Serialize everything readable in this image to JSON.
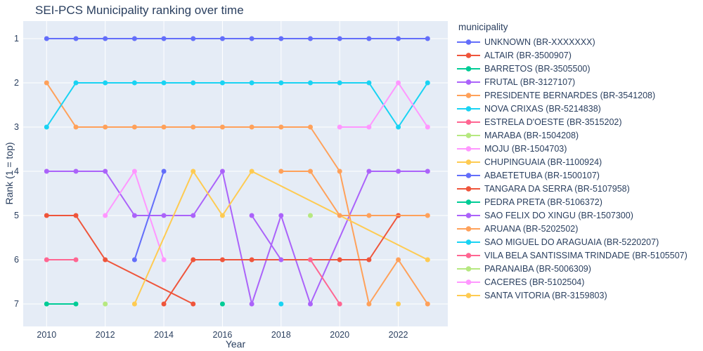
{
  "text_color": "#2a3f5f",
  "chart_data": {
    "type": "line",
    "title": "SEI-PCS Municipality ranking over time",
    "xlabel": "Year",
    "ylabel": "Rank (1 = top)",
    "legend_title": "municipality",
    "legend_position": "right",
    "plot_bg": "#E5ECF6",
    "grid": true,
    "grid_color": "#ffffff",
    "x_ticks": [
      2010,
      2012,
      2014,
      2016,
      2018,
      2020,
      2022
    ],
    "y_ticks": [
      1,
      2,
      3,
      4,
      5,
      6,
      7
    ],
    "x_range": [
      2009.2,
      2023.7
    ],
    "y_range": [
      7.5,
      0.6
    ],
    "y_axis_note": "y axis inverted: rank 1 plotted at top",
    "series": [
      {
        "name": "UNKNOWN (BR-XXXXXXX)",
        "color": "#636EFA",
        "points": [
          [
            2010,
            1
          ],
          [
            2011,
            1
          ],
          [
            2012,
            1
          ],
          [
            2013,
            1
          ],
          [
            2014,
            1
          ],
          [
            2015,
            1
          ],
          [
            2016,
            1
          ],
          [
            2017,
            1
          ],
          [
            2018,
            1
          ],
          [
            2019,
            1
          ],
          [
            2020,
            1
          ],
          [
            2021,
            1
          ],
          [
            2022,
            1
          ],
          [
            2023,
            1
          ]
        ]
      },
      {
        "name": "ALTAIR (BR-3500907)",
        "color": "#EF553B",
        "points": [
          [
            2010,
            5
          ],
          [
            2011,
            5
          ],
          [
            2012,
            6
          ],
          [
            2015,
            7
          ]
        ]
      },
      {
        "name": "BARRETOS (BR-3505500)",
        "color": "#00CC96",
        "points": [
          [
            2010,
            7
          ],
          [
            2011,
            7
          ]
        ]
      },
      {
        "name": "FRUTAL (BR-3127107)",
        "color": "#AB63FA",
        "points": [
          [
            2010,
            4
          ],
          [
            2011,
            4
          ],
          [
            2012,
            4
          ],
          [
            2013,
            5
          ],
          [
            2014,
            5
          ],
          [
            2015,
            5
          ],
          [
            2016,
            4
          ],
          [
            2017,
            7
          ],
          [
            2018,
            5
          ],
          [
            2019,
            7
          ],
          [
            2021,
            4
          ],
          [
            2022,
            4
          ],
          [
            2023,
            4
          ]
        ]
      },
      {
        "name": "PRESIDENTE BERNARDES (BR-3541208)",
        "color": "#FFA15A",
        "points": [
          [
            2010,
            2
          ],
          [
            2011,
            3
          ],
          [
            2012,
            3
          ],
          [
            2013,
            3
          ],
          [
            2014,
            3
          ],
          [
            2015,
            3
          ],
          [
            2016,
            3
          ],
          [
            2017,
            3
          ],
          [
            2018,
            3
          ],
          [
            2019,
            3
          ],
          [
            2020,
            4
          ],
          [
            2021,
            7
          ],
          [
            2022,
            6
          ],
          [
            2023,
            7
          ]
        ]
      },
      {
        "name": "NOVA CRIXAS (BR-5214838)",
        "color": "#19D3F3",
        "points": [
          [
            2010,
            3
          ],
          [
            2011,
            2
          ],
          [
            2012,
            2
          ],
          [
            2013,
            2
          ],
          [
            2014,
            2
          ],
          [
            2015,
            2
          ],
          [
            2016,
            2
          ],
          [
            2017,
            2
          ],
          [
            2018,
            2
          ],
          [
            2019,
            2
          ],
          [
            2020,
            2
          ],
          [
            2021,
            2
          ],
          [
            2022,
            3
          ],
          [
            2023,
            2
          ]
        ]
      },
      {
        "name": "ESTRELA D'OESTE (BR-3515202)",
        "color": "#FF6692",
        "points": [
          [
            2010,
            6
          ],
          [
            2011,
            6
          ]
        ]
      },
      {
        "name": "MARABA (BR-1504208)",
        "color": "#B6E880",
        "points": [
          [
            2012,
            7
          ]
        ]
      },
      {
        "name": "MOJU (BR-1504703)",
        "color": "#FF97FF",
        "points": [
          [
            2012,
            5
          ],
          [
            2013,
            4
          ],
          [
            2014,
            6
          ]
        ]
      },
      {
        "name": "CHUPINGUAIA (BR-1100924)",
        "color": "#FECB52",
        "points": [
          [
            2013,
            7
          ],
          [
            2015,
            4
          ],
          [
            2016,
            5
          ],
          [
            2017,
            4
          ],
          [
            2023,
            6
          ]
        ]
      },
      {
        "name": "ABAETETUBA (BR-1500107)",
        "color": "#636EFA",
        "points": [
          [
            2013,
            6
          ],
          [
            2014,
            4
          ]
        ]
      },
      {
        "name": "TANGARA DA SERRA (BR-5107958)",
        "color": "#EF553B",
        "points": [
          [
            2014,
            7
          ],
          [
            2015,
            6
          ],
          [
            2016,
            6
          ],
          [
            2017,
            6
          ],
          [
            2020,
            6
          ],
          [
            2021,
            6
          ],
          [
            2022,
            5
          ]
        ]
      },
      {
        "name": "PEDRA PRETA (BR-5106372)",
        "color": "#00CC96",
        "points": [
          [
            2016,
            7
          ]
        ]
      },
      {
        "name": "SAO FELIX DO XINGU (BR-1507300)",
        "color": "#AB63FA",
        "points": [
          [
            2017,
            5
          ],
          [
            2018,
            6
          ]
        ]
      },
      {
        "name": "ARUANA (BR-5202502)",
        "color": "#FFA15A",
        "points": [
          [
            2018,
            4
          ],
          [
            2019,
            4
          ],
          [
            2020,
            5
          ],
          [
            2021,
            5
          ],
          [
            2023,
            5
          ]
        ]
      },
      {
        "name": "SAO MIGUEL DO ARAGUAIA (BR-5220207)",
        "color": "#19D3F3",
        "points": [
          [
            2018,
            7
          ]
        ]
      },
      {
        "name": "VILA BELA SANTISSIMA TRINDADE (BR-5105507)",
        "color": "#FF6692",
        "points": [
          [
            2019,
            6
          ],
          [
            2020,
            7
          ]
        ]
      },
      {
        "name": "PARANAIBA (BR-5006309)",
        "color": "#B6E880",
        "points": [
          [
            2019,
            5
          ]
        ]
      },
      {
        "name": "CACERES (BR-5102504)",
        "color": "#FF97FF",
        "points": [
          [
            2020,
            3
          ],
          [
            2021,
            3
          ],
          [
            2022,
            2
          ],
          [
            2023,
            3
          ]
        ]
      },
      {
        "name": "SANTA VITORIA (BR-3159803)",
        "color": "#FECB52",
        "points": [
          [
            2022,
            7
          ]
        ]
      }
    ]
  }
}
